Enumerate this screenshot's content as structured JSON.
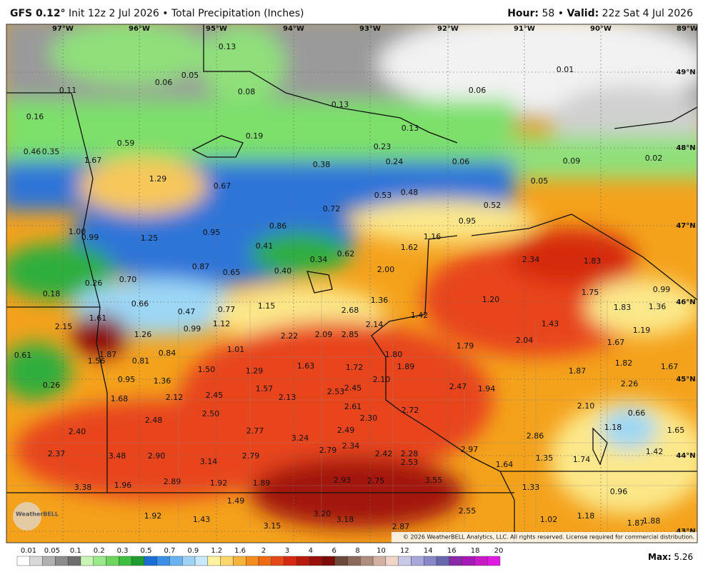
{
  "header": {
    "model": "GFS 0.12°",
    "init": "Init 12z 2 Jul 2026",
    "separator": "•",
    "product": "Total Precipitation (Inches)",
    "hour_label": "Hour:",
    "hour": "58",
    "valid_label": "Valid:",
    "valid": "22z Sat 4 Jul 2026"
  },
  "map": {
    "lon_labels": [
      "97°W",
      "96°W",
      "95°W",
      "94°W",
      "93°W",
      "92°W",
      "91°W",
      "90°W",
      "89°W"
    ],
    "lat_labels": [
      "49°N",
      "48°N",
      "47°N",
      "46°N",
      "45°N",
      "44°N",
      "43°N"
    ],
    "values": [
      "0.13",
      "0.05",
      "0.06",
      "0.11",
      "0.08",
      "0.01",
      "0.06",
      "0.13",
      "0.16",
      "0.13",
      "0.19",
      "0.46",
      "0.35",
      "0.59",
      "0.23",
      "1.67",
      "0.38",
      "0.24",
      "0.06",
      "0.09",
      "0.02",
      "1.29",
      "0.05",
      "0.67",
      "0.53",
      "0.48",
      "0.72",
      "0.52",
      "0.95",
      "0.86",
      "1.00",
      "0.99",
      "1.25",
      "0.95",
      "1.16",
      "0.41",
      "1.62",
      "0.62",
      "0.34",
      "2.34",
      "1.83",
      "0.87",
      "0.65",
      "0.40",
      "2.00",
      "0.70",
      "0.26",
      "0.18",
      "0.99",
      "1.75",
      "1.36",
      "1.20",
      "0.66",
      "1.15",
      "0.77",
      "0.47",
      "2.68",
      "1.42",
      "1.83",
      "1.36",
      "1.61",
      "1.12",
      "2.14",
      "1.43",
      "2.15",
      "0.99",
      "1.26",
      "2.22",
      "2.09",
      "2.85",
      "1.19",
      "2.04",
      "1.67",
      "1.79",
      "1.01",
      "0.84",
      "0.61",
      "1.87",
      "1.80",
      "1.56",
      "0.81",
      "1.63",
      "1.72",
      "1.89",
      "1.50",
      "1.29",
      "1.82",
      "1.67",
      "1.87",
      "0.95",
      "1.36",
      "2.10",
      "0.26",
      "2.26",
      "2.47",
      "1.94",
      "1.57",
      "2.53",
      "2.45",
      "1.68",
      "2.12",
      "2.45",
      "2.13",
      "2.61",
      "2.10",
      "2.72",
      "0.66",
      "2.50",
      "2.48",
      "2.30",
      "1.18",
      "1.65",
      "2.40",
      "2.77",
      "2.49",
      "2.86",
      "3.24",
      "2.79",
      "2.34",
      "2.97",
      "1.42",
      "2.37",
      "3.48",
      "2.90",
      "2.79",
      "2.42",
      "2.28",
      "3.14",
      "2.53",
      "1.35",
      "1.74",
      "1.64",
      "2.93",
      "2.75",
      "3.55",
      "1.96",
      "2.89",
      "1.92",
      "1.89",
      "3.38",
      "1.33",
      "0.96",
      "1.49",
      "2.55",
      "1.92",
      "3.20",
      "3.18",
      "1.43",
      "1.02",
      "1.18",
      "1.87",
      "1.88",
      "3.15",
      "2.87"
    ],
    "logo": "WeatherBELL",
    "copyright": "© 2026 WeatherBELL Analytics, LLC. All rights reserved. License required for commercial distribution."
  },
  "legend": {
    "levels": [
      "0.01",
      "0.05",
      "0.1",
      "0.2",
      "0.3",
      "0.5",
      "0.7",
      "0.9",
      "1.2",
      "1.6",
      "2",
      "3",
      "4",
      "6",
      "8",
      "10",
      "12",
      "14",
      "16",
      "18",
      "20"
    ],
    "max_label": "Max:",
    "max": "5.26"
  }
}
